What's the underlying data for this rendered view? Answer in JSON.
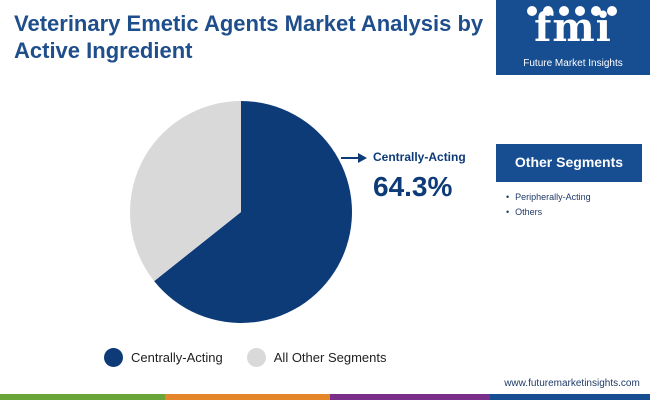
{
  "title": "Veterinary Emetic Agents Market Analysis by Active Ingredient",
  "chart_data": {
    "type": "pie",
    "title": "Veterinary Emetic Agents Market Analysis by Active Ingredient",
    "labels": [
      "Centrally-Acting",
      "All Other Segments"
    ],
    "values": [
      64.3,
      35.7
    ],
    "colors": [
      "#0d3b78",
      "#d9d9d9"
    ],
    "legend_position": "bottom",
    "annotations": [
      {
        "label": "Centrally-Acting",
        "value_text": "64.3%"
      }
    ]
  },
  "callout": {
    "label": "Centrally-Acting",
    "value": "64.3%"
  },
  "legend": [
    {
      "label": "Centrally-Acting",
      "color": "#0d3b78"
    },
    {
      "label": "All Other Segments",
      "color": "#d9d9d9"
    }
  ],
  "logo": {
    "letters": "fmi",
    "name": "Future Market Insights"
  },
  "other_segments": {
    "title": "Other Segments",
    "items": [
      "Peripherally-Acting",
      "Others"
    ]
  },
  "website": "www.futuremarketinsights.com",
  "colors": {
    "brand": "#174e92",
    "title": "#1f4e8c",
    "bar_green": "#6aa539",
    "bar_orange": "#e5862a",
    "bar_purple": "#7a2f8a"
  }
}
